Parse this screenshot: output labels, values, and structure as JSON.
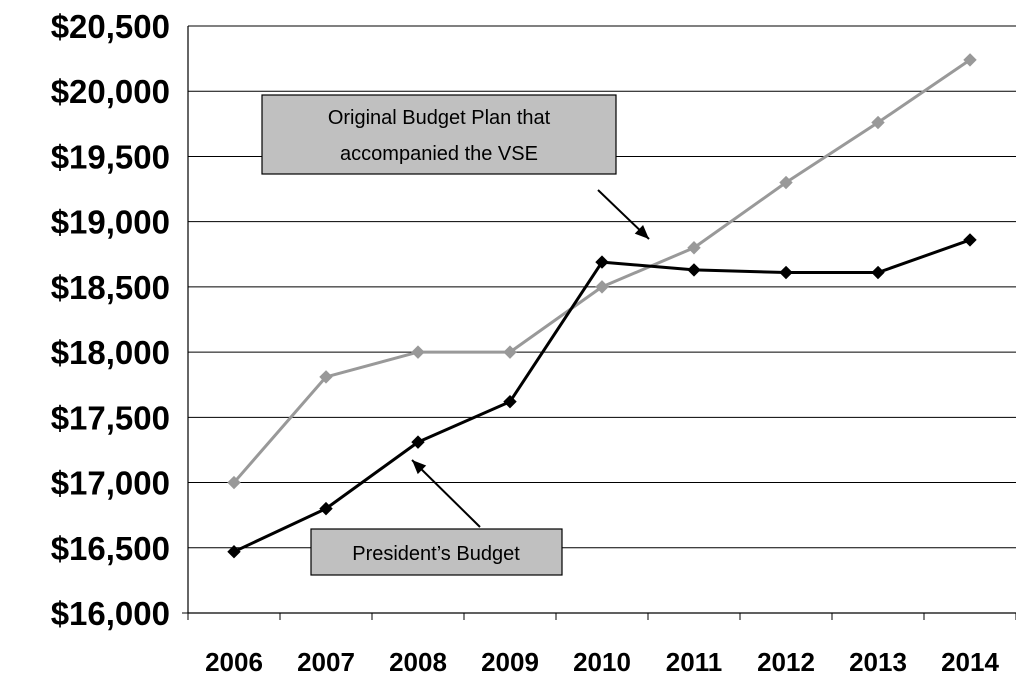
{
  "chart_data": {
    "type": "line",
    "categories": [
      "2006",
      "2007",
      "2008",
      "2009",
      "2010",
      "2011",
      "2012",
      "2013",
      "2014"
    ],
    "ylim": [
      16000,
      20500
    ],
    "yticks": [
      16000,
      16500,
      17000,
      17500,
      18000,
      18500,
      19000,
      19500,
      20000,
      20500
    ],
    "ytick_labels": [
      "$16,000",
      "$16,500",
      "$17,000",
      "$17,500",
      "$18,000",
      "$18,500",
      "$19,000",
      "$19,500",
      "$20,000",
      "$20,500"
    ],
    "grid": "horizontal",
    "series": [
      {
        "key": "original",
        "color": "#999999",
        "marker": "diamond",
        "values": [
          17000,
          17810,
          18000,
          18000,
          18500,
          18800,
          19300,
          19760,
          20240
        ]
      },
      {
        "key": "president",
        "color": "#000000",
        "marker": "diamond",
        "values": [
          16470,
          16800,
          17310,
          17620,
          18690,
          18630,
          18610,
          18610,
          18860
        ]
      }
    ],
    "annotations": [
      {
        "key": "original",
        "lines": [
          "Original Budget Plan that",
          "accompanied the VSE"
        ]
      },
      {
        "key": "president",
        "lines": [
          "President’s Budget"
        ]
      }
    ]
  }
}
